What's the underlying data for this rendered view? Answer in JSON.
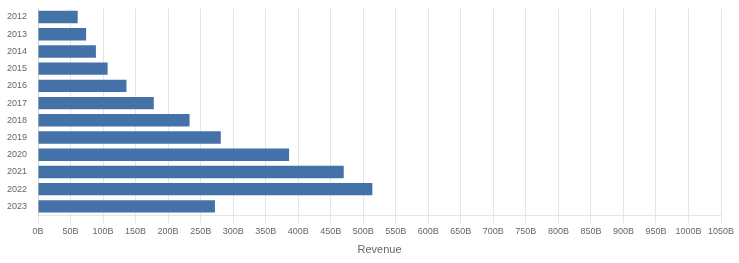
{
  "chart_data": {
    "type": "bar",
    "orientation": "horizontal",
    "categories": [
      "2012",
      "2013",
      "2014",
      "2015",
      "2016",
      "2017",
      "2018",
      "2019",
      "2020",
      "2021",
      "2022",
      "2023"
    ],
    "values": [
      61,
      74,
      89,
      107,
      136,
      178,
      233,
      281,
      386,
      470,
      514,
      272
    ],
    "color": "#4472a8",
    "xlabel": "Revenue",
    "xlim": [
      0,
      1050
    ],
    "xticks": [
      {
        "value": 0,
        "label": "0B"
      },
      {
        "value": 50,
        "label": "50B"
      },
      {
        "value": 100,
        "label": "100B"
      },
      {
        "value": 150,
        "label": "150B"
      },
      {
        "value": 200,
        "label": "200B"
      },
      {
        "value": 250,
        "label": "250B"
      },
      {
        "value": 300,
        "label": "300B"
      },
      {
        "value": 350,
        "label": "350B"
      },
      {
        "value": 400,
        "label": "400B"
      },
      {
        "value": 450,
        "label": "450B"
      },
      {
        "value": 500,
        "label": "500B"
      },
      {
        "value": 550,
        "label": "550B"
      },
      {
        "value": 600,
        "label": "600B"
      },
      {
        "value": 650,
        "label": "650B"
      },
      {
        "value": 700,
        "label": "700B"
      },
      {
        "value": 750,
        "label": "750B"
      },
      {
        "value": 800,
        "label": "800B"
      },
      {
        "value": 850,
        "label": "850B"
      },
      {
        "value": 900,
        "label": "900B"
      },
      {
        "value": 950,
        "label": "950B"
      },
      {
        "value": 1000,
        "label": "1000B"
      },
      {
        "value": 1050,
        "label": "1050B"
      }
    ],
    "grid": true
  }
}
